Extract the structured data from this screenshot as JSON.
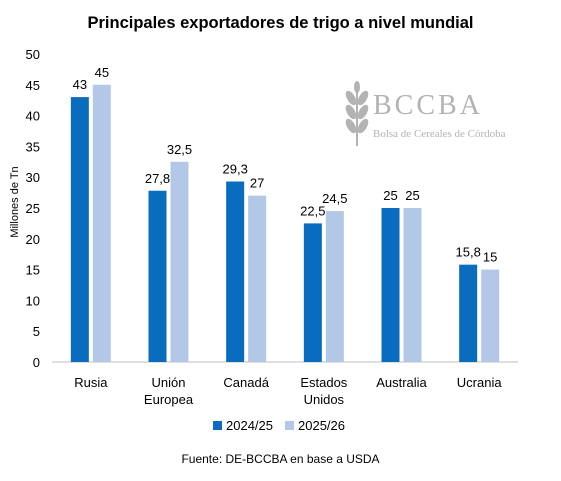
{
  "title": "Principales exportadores de trigo a nivel mundial",
  "source": "Fuente: DE-BCCBA en base a USDA",
  "logo": {
    "name": "BCCBA",
    "subtitle": "Bolsa de Cereales de Córdoba"
  },
  "colors": {
    "series_1": "#0a6cbf",
    "series_2": "#b3c7e6",
    "axis": "#bfbfbf",
    "watermark": "#b3b3b3"
  },
  "chart_data": {
    "type": "bar",
    "title": "Principales exportadores de trigo a nivel mundial",
    "xlabel": "",
    "ylabel": "Millones de Tn",
    "ylim": [
      0,
      50
    ],
    "yticks": [
      0,
      5,
      10,
      15,
      20,
      25,
      30,
      35,
      40,
      45,
      50
    ],
    "grid": false,
    "legend": "bottom-center",
    "categories": [
      [
        "Rusia"
      ],
      [
        "Unión",
        "Europea"
      ],
      [
        "Canadá"
      ],
      [
        "Estados",
        "Unidos"
      ],
      [
        "Australia"
      ],
      [
        "Ucrania"
      ]
    ],
    "series": [
      {
        "name": "2024/25",
        "values": [
          43,
          27.8,
          29.3,
          22.5,
          25,
          15.8
        ],
        "labels": [
          "43",
          "27,8",
          "29,3",
          "22,5",
          "25",
          "15,8"
        ]
      },
      {
        "name": "2025/26",
        "values": [
          45,
          32.5,
          27,
          24.5,
          25,
          15
        ],
        "labels": [
          "45",
          "32,5",
          "27",
          "24,5",
          "25",
          "15"
        ]
      }
    ]
  }
}
